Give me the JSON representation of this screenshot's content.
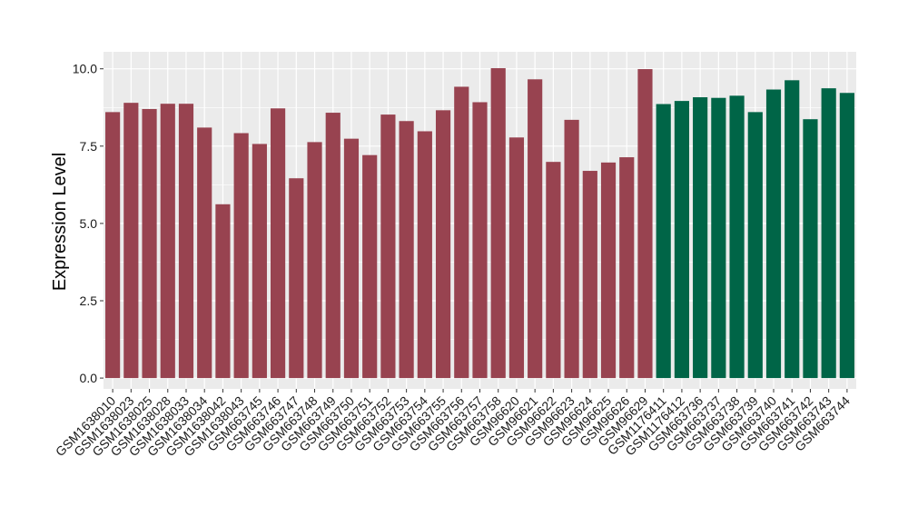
{
  "chart_data": {
    "type": "bar",
    "title": "",
    "xlabel": "",
    "ylabel": "Expression Level",
    "ylim": [
      -0.35,
      10.55
    ],
    "yticks": [
      0.0,
      2.5,
      5.0,
      7.5,
      10.0
    ],
    "ytick_labels": [
      "0.0",
      "2.5",
      "5.0",
      "7.5",
      "10.0"
    ],
    "grid": true,
    "legend": "none",
    "categories": [
      "GSM1638010",
      "GSM1638023",
      "GSM1638025",
      "GSM1638028",
      "GSM1638033",
      "GSM1638034",
      "GSM1638042",
      "GSM1638043",
      "GSM663745",
      "GSM663746",
      "GSM663747",
      "GSM663748",
      "GSM663749",
      "GSM663750",
      "GSM663751",
      "GSM663752",
      "GSM663753",
      "GSM663754",
      "GSM663755",
      "GSM663756",
      "GSM663757",
      "GSM663758",
      "GSM96620",
      "GSM96621",
      "GSM96622",
      "GSM96623",
      "GSM96624",
      "GSM96625",
      "GSM96626",
      "GSM96629",
      "GSM1176411",
      "GSM1176412",
      "GSM663736",
      "GSM663737",
      "GSM663738",
      "GSM663739",
      "GSM663740",
      "GSM663741",
      "GSM663742",
      "GSM663743",
      "GSM663744"
    ],
    "values": [
      8.6,
      8.9,
      8.7,
      8.87,
      8.87,
      8.1,
      5.62,
      7.92,
      7.57,
      8.72,
      6.46,
      7.63,
      8.58,
      7.74,
      7.21,
      8.52,
      8.31,
      7.98,
      8.66,
      9.42,
      8.92,
      10.02,
      7.78,
      9.66,
      6.99,
      8.35,
      6.7,
      6.97,
      7.14,
      9.99,
      8.86,
      8.96,
      9.08,
      9.06,
      9.13,
      8.6,
      9.33,
      9.63,
      8.37,
      9.37,
      9.22
    ],
    "groups": [
      0,
      0,
      0,
      0,
      0,
      0,
      0,
      0,
      0,
      0,
      0,
      0,
      0,
      0,
      0,
      0,
      0,
      0,
      0,
      0,
      0,
      0,
      0,
      0,
      0,
      0,
      0,
      0,
      0,
      0,
      1,
      1,
      1,
      1,
      1,
      1,
      1,
      1,
      1,
      1,
      1
    ],
    "colors": [
      "#984350",
      "#006547"
    ],
    "panel_background": "#ebebeb",
    "grid_color": "#ffffff"
  }
}
